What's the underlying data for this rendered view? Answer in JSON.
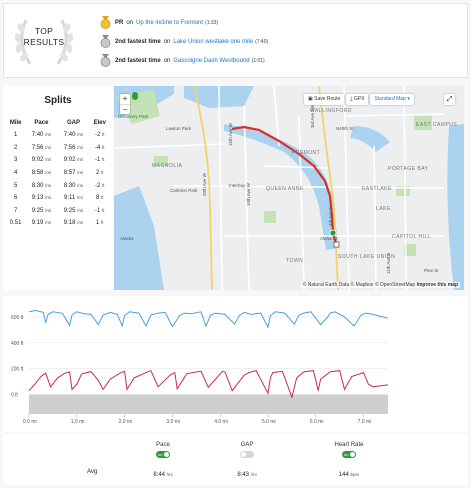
{
  "top_results": {
    "title_line1": "TOP",
    "title_line2": "RESULTS",
    "items": [
      {
        "rank_label": "PR",
        "on": "on",
        "segment": "Up the incline to Fremont",
        "time": "(1:33)",
        "medal": "gold-medal-icon"
      },
      {
        "rank_label": "2nd fastest time",
        "on": "on",
        "segment": "Lake Union westlake one mile",
        "time": "(7:40)",
        "medal": "silver-medal-icon"
      },
      {
        "rank_label": "2nd fastest time",
        "on": "on",
        "segment": "Gascoigne Dash Westbound",
        "time": "(1:01)",
        "medal": "silver-medal-icon"
      }
    ]
  },
  "splits": {
    "title": "Splits",
    "headers": [
      "Mile",
      "Pace",
      "GAP",
      "Elev"
    ],
    "rows": [
      {
        "mile": "1",
        "pace": "7:40",
        "pace_u": "/mi",
        "gap": "7:40",
        "gap_u": "/mi",
        "elev": "-2",
        "elev_u": "ft"
      },
      {
        "mile": "2",
        "pace": "7:56",
        "pace_u": "/mi",
        "gap": "7:56",
        "gap_u": "/mi",
        "elev": "-4",
        "elev_u": "ft"
      },
      {
        "mile": "3",
        "pace": "9:02",
        "pace_u": "/mi",
        "gap": "9:02",
        "gap_u": "/mi",
        "elev": "-1",
        "elev_u": "ft"
      },
      {
        "mile": "4",
        "pace": "8:58",
        "pace_u": "/mi",
        "gap": "8:57",
        "gap_u": "/mi",
        "elev": "2",
        "elev_u": "ft"
      },
      {
        "mile": "5",
        "pace": "8:30",
        "pace_u": "/mi",
        "gap": "8:30",
        "gap_u": "/mi",
        "elev": "-2",
        "elev_u": "ft"
      },
      {
        "mile": "6",
        "pace": "9:13",
        "pace_u": "/mi",
        "gap": "9:11",
        "gap_u": "/mi",
        "elev": "8",
        "elev_u": "ft"
      },
      {
        "mile": "7",
        "pace": "9:25",
        "pace_u": "/mi",
        "gap": "9:25",
        "gap_u": "/mi",
        "elev": "-1",
        "elev_u": "ft"
      },
      {
        "mile": "0.51",
        "pace": "9:19",
        "pace_u": "/mi",
        "gap": "9:18",
        "gap_u": "/mi",
        "elev": "1",
        "elev_u": "ft"
      }
    ]
  },
  "map": {
    "zoom_in": "+",
    "zoom_out": "−",
    "save_route": "Save Route",
    "gpx": "GPX",
    "map_type": "Standard Map",
    "attribution": "© Natural Earth Data © Mapbox © OpenStreetMap",
    "improve": "Improve this map",
    "labels": {
      "discovery_park": "Discovery Park",
      "lawton_park": "Lawton Park",
      "magnolia": "MAGNOLIA",
      "queen_anne": "QUEEN ANNE",
      "fremont": "FREMONT",
      "wallingford": "WALLINGFORD",
      "eastlake": "EASTLAKE",
      "south_lake_union": "SOUTH LAKE UNION",
      "capitol_hill": "CAPITOL HILL",
      "portage_bay": "PORTAGE BAY",
      "east_campus": "EAST CAMPUS",
      "carleton_park": "Carleton Park",
      "interbay": "Interbay",
      "alaska": "Alaska",
      "n40th": "N40th St",
      "ave_15th": "15th Ave W",
      "ave_3rd": "3rd Ave NW",
      "ave_20th": "20th Ave W",
      "ave_10th": "10th Ave W",
      "ave_4th": "4th Ave N",
      "aloha": "Aloha St",
      "ave_11th": "11th Ave E",
      "pine": "Pine St",
      "town": "TOWN",
      "lake": "LAKE"
    },
    "colors": {
      "route": "#d92f2f",
      "water": "#abd2ee",
      "land": "#eceef0",
      "park": "#c5e2b6",
      "start": "#2e9b3a"
    }
  },
  "chart_data": {
    "type": "line",
    "x_ticks": [
      "0.0 mi",
      "1.0 mi",
      "2.0 mi",
      "3.0 mi",
      "4.0 mi",
      "5.0 mi",
      "6.0 mi",
      "7.0 mi"
    ],
    "y_ticks": [
      "600 ft",
      "400 ft",
      "200 ft",
      "0 ft"
    ],
    "xlim": [
      0,
      7.51
    ],
    "ylim": [
      -150,
      700
    ],
    "series": [
      {
        "color": "#4a9fd8",
        "x": [
          0.0,
          0.15,
          0.3,
          0.35,
          0.4,
          0.5,
          0.7,
          0.85,
          0.9,
          1.0,
          1.15,
          1.3,
          1.45,
          1.55,
          1.7,
          1.85,
          1.95,
          2.0,
          2.1,
          2.3,
          2.45,
          2.55,
          2.7,
          2.85,
          3.0,
          3.15,
          3.25,
          3.4,
          3.6,
          3.7,
          3.8,
          3.9,
          4.1,
          4.3,
          4.4,
          4.5,
          4.65,
          4.85,
          5.0,
          5.05,
          5.15,
          5.35,
          5.55,
          5.65,
          5.75,
          5.9,
          6.1,
          6.25,
          6.3,
          6.4,
          6.6,
          6.8,
          6.95,
          7.05,
          7.2,
          7.4,
          7.51
        ],
        "y": [
          640,
          650,
          635,
          555,
          620,
          640,
          628,
          535,
          615,
          640,
          625,
          620,
          540,
          615,
          635,
          620,
          530,
          610,
          640,
          630,
          530,
          615,
          630,
          635,
          525,
          610,
          630,
          625,
          640,
          530,
          615,
          630,
          620,
          545,
          610,
          635,
          620,
          630,
          520,
          610,
          640,
          630,
          545,
          615,
          630,
          640,
          540,
          600,
          630,
          640,
          600,
          530,
          615,
          630,
          620,
          600,
          590
        ]
      },
      {
        "color": "#c82c4b",
        "x": [
          0.0,
          0.1,
          0.25,
          0.35,
          0.45,
          0.6,
          0.75,
          0.85,
          0.9,
          1.0,
          1.1,
          1.3,
          1.45,
          1.55,
          1.7,
          1.9,
          2.0,
          2.05,
          2.2,
          2.45,
          2.55,
          2.7,
          2.95,
          3.05,
          3.1,
          3.3,
          3.5,
          3.6,
          3.75,
          3.95,
          4.05,
          4.1,
          4.25,
          4.5,
          4.6,
          4.75,
          5.0,
          5.05,
          5.1,
          5.3,
          5.5,
          5.6,
          5.75,
          5.95,
          6.05,
          6.1,
          6.3,
          6.5,
          6.6,
          6.75,
          7.0,
          7.1,
          7.2,
          7.4,
          7.51
        ],
        "y": [
          30,
          70,
          140,
          165,
          60,
          130,
          165,
          175,
          40,
          80,
          160,
          178,
          110,
          40,
          120,
          165,
          180,
          40,
          130,
          170,
          185,
          60,
          150,
          170,
          45,
          160,
          175,
          180,
          55,
          140,
          180,
          175,
          30,
          150,
          170,
          185,
          10,
          130,
          170,
          180,
          -20,
          130,
          175,
          185,
          30,
          120,
          175,
          185,
          40,
          140,
          170,
          80,
          60,
          70,
          75
        ]
      }
    ],
    "baseline": {
      "color": "#cfcfd2",
      "value": 0
    }
  },
  "stats": {
    "avg_label": "Avg",
    "columns": [
      {
        "label": "Pace",
        "toggle": "on",
        "toggle_text": "on",
        "value": "8:44",
        "unit": "/mi"
      },
      {
        "label": "GAP",
        "toggle": "off",
        "toggle_text": "",
        "value": "8:43",
        "unit": "/mi"
      },
      {
        "label": "Heart Rate",
        "toggle": "on",
        "toggle_text": "on",
        "value": "144",
        "unit": "bpm"
      }
    ]
  }
}
